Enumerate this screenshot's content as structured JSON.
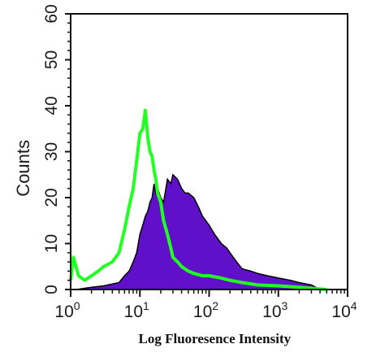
{
  "chart_data": {
    "type": "area",
    "title": "",
    "xlabel": "Log Fluoresence Intensity",
    "ylabel": "Counts",
    "xscale": "log",
    "xlim": [
      1,
      10000
    ],
    "ylim": [
      0,
      60
    ],
    "x_ticks": [
      {
        "base": "10",
        "exp": "0"
      },
      {
        "base": "10",
        "exp": "1"
      },
      {
        "base": "10",
        "exp": "2"
      },
      {
        "base": "10",
        "exp": "3"
      },
      {
        "base": "10",
        "exp": "4"
      }
    ],
    "y_ticks": [
      "0",
      "10",
      "20",
      "30",
      "40",
      "50",
      "60"
    ],
    "grid": false,
    "legend": "none",
    "series": [
      {
        "style": "filled",
        "color": "#6010c8",
        "x": [
          1.2,
          2,
          3,
          5,
          6,
          7,
          8,
          9,
          10,
          11,
          12,
          13,
          14,
          15,
          16,
          17,
          18,
          20,
          22,
          25,
          28,
          30,
          35,
          40,
          45,
          50,
          60,
          70,
          80,
          100,
          120,
          150,
          180,
          200,
          250,
          300,
          400,
          500,
          700,
          1000,
          1500,
          2000,
          3000,
          4000
        ],
        "values": [
          0,
          0.5,
          0.8,
          1.5,
          3,
          4,
          6,
          8,
          12,
          14,
          16,
          17,
          19,
          20,
          23,
          21,
          22,
          20,
          19,
          24,
          23,
          25,
          24,
          22,
          21,
          21,
          20,
          18,
          16,
          14,
          12,
          10,
          9,
          8,
          6,
          4.5,
          4,
          3.5,
          3,
          2.5,
          2,
          1.5,
          1,
          0
        ]
      },
      {
        "style": "line",
        "color": "#22ff22",
        "x": [
          1,
          1.1,
          1.3,
          1.6,
          2,
          2.5,
          3,
          4,
          5,
          6,
          7,
          8,
          9,
          10,
          11,
          12,
          13,
          14,
          15,
          16,
          17,
          18,
          20,
          22,
          25,
          28,
          30,
          35,
          40,
          50,
          60,
          80,
          100,
          150,
          200,
          300,
          500,
          1000,
          2000,
          5000
        ],
        "values": [
          2,
          7,
          3,
          2,
          3,
          4,
          5,
          6,
          8,
          13,
          18,
          22,
          28,
          34,
          35,
          39,
          33,
          30,
          29,
          26,
          24,
          21,
          19,
          15,
          12,
          9,
          7,
          6,
          5,
          4,
          3.5,
          3,
          3,
          2.5,
          2,
          1.5,
          1,
          0.8,
          0.5,
          0
        ]
      }
    ]
  }
}
